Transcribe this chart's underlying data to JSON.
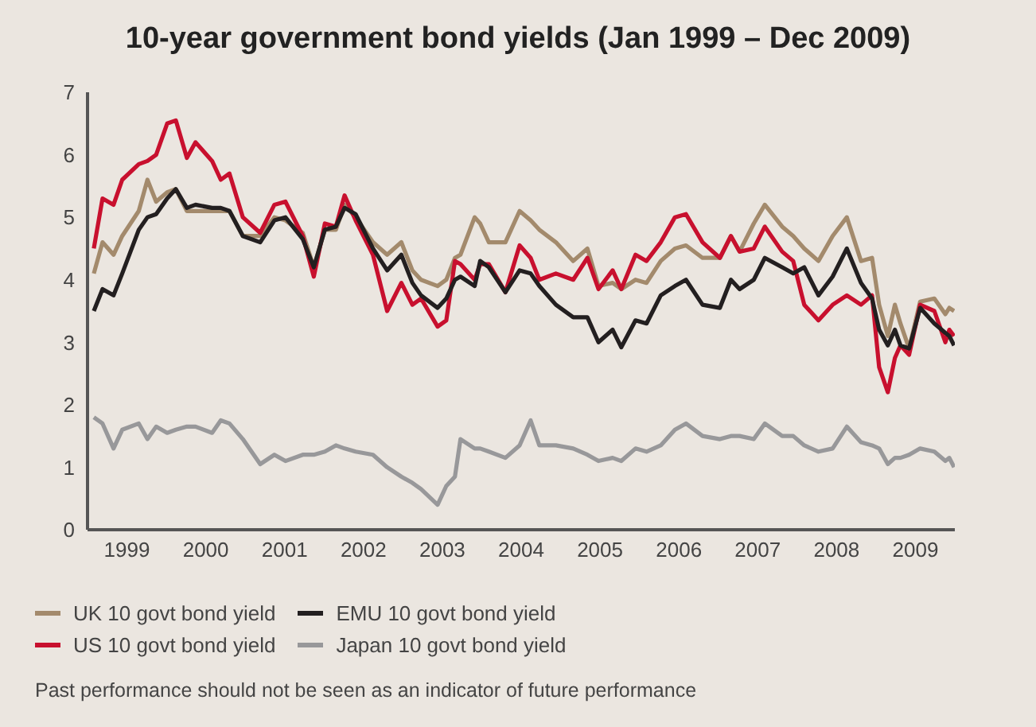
{
  "chart_data": {
    "type": "line",
    "title": "10-year government bond yields (Jan 1999 – Dec 2009)",
    "x": [
      1999.08,
      1999.19,
      1999.33,
      1999.44,
      1999.65,
      1999.76,
      1999.87,
      2000.01,
      2000.12,
      2000.26,
      2000.37,
      2000.58,
      2000.69,
      2000.8,
      2000.97,
      2001.19,
      2001.37,
      2001.51,
      2001.73,
      2001.87,
      2002.01,
      2002.15,
      2002.26,
      2002.4,
      2002.62,
      2002.8,
      2002.98,
      2003.12,
      2003.23,
      2003.44,
      2003.55,
      2003.66,
      2003.73,
      2003.91,
      2003.98,
      2004.09,
      2004.3,
      2004.48,
      2004.62,
      2004.73,
      2004.94,
      2005.16,
      2005.34,
      2005.48,
      2005.66,
      2005.77,
      2005.95,
      2006.09,
      2006.27,
      2006.45,
      2006.59,
      2006.8,
      2007.02,
      2007.16,
      2007.27,
      2007.45,
      2007.59,
      2007.81,
      2007.95,
      2008.09,
      2008.27,
      2008.45,
      2008.63,
      2008.81,
      2008.95,
      2009.04,
      2009.15,
      2009.24,
      2009.31,
      2009.42,
      2009.56,
      2009.74,
      2009.88,
      2009.93,
      2009.99
    ],
    "series": [
      {
        "name": "UK 10 govt bond yield",
        "color": "#a38a6c",
        "values": [
          4.1,
          4.6,
          4.4,
          4.7,
          5.1,
          5.6,
          5.25,
          5.4,
          5.45,
          5.1,
          5.1,
          5.1,
          5.1,
          5.1,
          4.7,
          4.7,
          5.0,
          4.95,
          4.75,
          4.2,
          4.8,
          4.8,
          5.2,
          5.0,
          4.6,
          4.4,
          4.6,
          4.15,
          4.0,
          3.9,
          4.0,
          4.35,
          4.4,
          5.0,
          4.9,
          4.6,
          4.6,
          5.1,
          4.95,
          4.8,
          4.6,
          4.3,
          4.5,
          3.9,
          3.95,
          3.85,
          4.0,
          3.95,
          4.3,
          4.5,
          4.55,
          4.35,
          4.35,
          4.7,
          4.45,
          4.9,
          5.2,
          4.85,
          4.7,
          4.5,
          4.3,
          4.7,
          5.0,
          4.3,
          4.35,
          3.6,
          3.1,
          3.6,
          3.3,
          2.9,
          3.65,
          3.7,
          3.45,
          3.55,
          3.5
        ]
      },
      {
        "name": "US 10 govt bond yield",
        "color": "#c8102e",
        "values": [
          4.5,
          5.3,
          5.2,
          5.6,
          5.85,
          5.9,
          6.0,
          6.5,
          6.55,
          5.95,
          6.2,
          5.9,
          5.6,
          5.7,
          5.0,
          4.75,
          5.2,
          5.25,
          4.7,
          4.05,
          4.9,
          4.85,
          5.35,
          4.95,
          4.4,
          3.5,
          3.95,
          3.6,
          3.7,
          3.25,
          3.35,
          4.3,
          4.25,
          4.0,
          4.25,
          4.25,
          3.8,
          4.55,
          4.35,
          4.0,
          4.1,
          4.0,
          4.35,
          3.85,
          4.15,
          3.85,
          4.4,
          4.3,
          4.6,
          5.0,
          5.05,
          4.6,
          4.35,
          4.7,
          4.45,
          4.5,
          4.85,
          4.45,
          4.3,
          3.6,
          3.35,
          3.6,
          3.75,
          3.6,
          3.75,
          2.6,
          2.2,
          2.75,
          2.95,
          2.8,
          3.6,
          3.5,
          3.0,
          3.2,
          3.1
        ]
      },
      {
        "name": "EMU 10 govt bond yield",
        "color": "#231f20",
        "values": [
          3.5,
          3.85,
          3.75,
          4.1,
          4.8,
          5.0,
          5.05,
          5.3,
          5.45,
          5.15,
          5.2,
          5.15,
          5.15,
          5.1,
          4.7,
          4.6,
          4.95,
          5.0,
          4.65,
          4.2,
          4.8,
          4.85,
          5.15,
          5.05,
          4.5,
          4.15,
          4.4,
          3.95,
          3.75,
          3.55,
          3.7,
          4.0,
          4.05,
          3.9,
          4.3,
          4.2,
          3.8,
          4.15,
          4.1,
          3.9,
          3.6,
          3.4,
          3.4,
          3.0,
          3.2,
          2.92,
          3.35,
          3.3,
          3.75,
          3.9,
          4.0,
          3.6,
          3.55,
          4.0,
          3.85,
          4.0,
          4.35,
          4.2,
          4.1,
          4.2,
          3.75,
          4.05,
          4.5,
          3.95,
          3.7,
          3.2,
          2.95,
          3.2,
          2.95,
          2.9,
          3.55,
          3.3,
          3.15,
          3.1,
          2.95
        ]
      },
      {
        "name": "Japan 10 govt bond yield",
        "color": "#98989a",
        "values": [
          1.8,
          1.7,
          1.3,
          1.6,
          1.7,
          1.45,
          1.65,
          1.55,
          1.6,
          1.65,
          1.65,
          1.55,
          1.75,
          1.7,
          1.45,
          1.05,
          1.2,
          1.1,
          1.2,
          1.2,
          1.25,
          1.35,
          1.3,
          1.25,
          1.2,
          1.0,
          0.85,
          0.75,
          0.65,
          0.4,
          0.7,
          0.85,
          1.45,
          1.3,
          1.3,
          1.25,
          1.15,
          1.35,
          1.75,
          1.35,
          1.35,
          1.3,
          1.2,
          1.1,
          1.15,
          1.1,
          1.3,
          1.25,
          1.35,
          1.6,
          1.7,
          1.5,
          1.45,
          1.5,
          1.5,
          1.45,
          1.7,
          1.5,
          1.5,
          1.35,
          1.25,
          1.3,
          1.65,
          1.4,
          1.35,
          1.3,
          1.05,
          1.15,
          1.15,
          1.2,
          1.3,
          1.25,
          1.1,
          1.15,
          1.0
        ]
      }
    ],
    "xlim": [
      1999,
      2010
    ],
    "xticks": [
      {
        "value": 1999.5,
        "label": "1999"
      },
      {
        "value": 2000.5,
        "label": "2000"
      },
      {
        "value": 2001.5,
        "label": "2001"
      },
      {
        "value": 2002.5,
        "label": "2002"
      },
      {
        "value": 2003.5,
        "label": "2003"
      },
      {
        "value": 2004.5,
        "label": "2004"
      },
      {
        "value": 2005.5,
        "label": "2005"
      },
      {
        "value": 2006.5,
        "label": "2006"
      },
      {
        "value": 2007.5,
        "label": "2007"
      },
      {
        "value": 2008.5,
        "label": "2008"
      },
      {
        "value": 2009.5,
        "label": "2009"
      }
    ],
    "ylim": [
      0,
      7
    ],
    "yticks": [
      0,
      1,
      2,
      3,
      4,
      5,
      6,
      7
    ],
    "grid": false,
    "legend": "bottom",
    "line_style": "solid",
    "annotations": [
      "Past performance should not be seen as an indicator of future performance"
    ]
  }
}
